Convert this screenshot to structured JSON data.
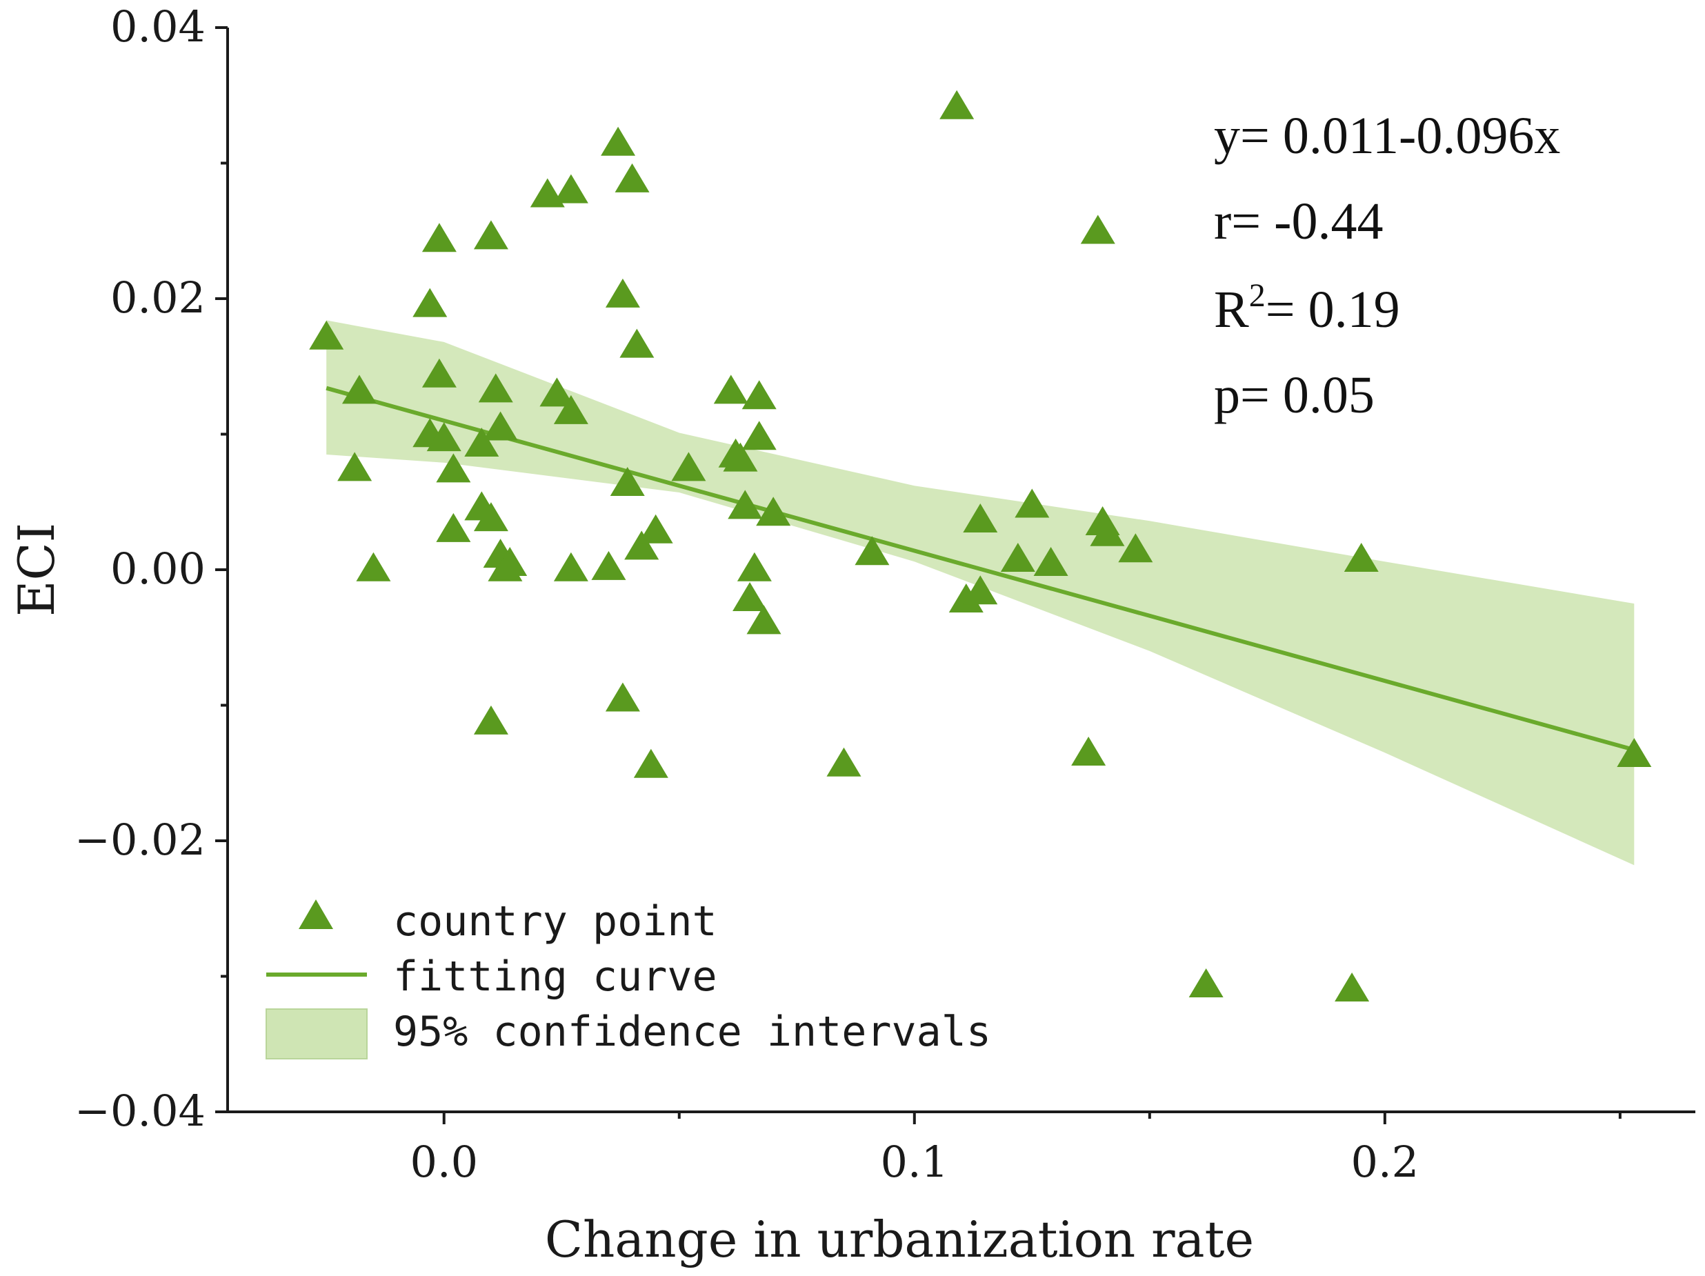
{
  "chart_data": {
    "type": "scatter",
    "xlabel": "Change in urbanization rate",
    "ylabel": "ECI",
    "xlim": [
      -0.046,
      0.266
    ],
    "ylim": [
      -0.04,
      0.04
    ],
    "x_ticks": [
      0.0,
      0.1,
      0.2
    ],
    "x_tick_labels": [
      "0.0",
      "0.1",
      "0.2"
    ],
    "y_ticks": [
      -0.04,
      -0.02,
      0.0,
      0.02,
      0.04
    ],
    "y_tick_labels": [
      "−0.04",
      "−0.02",
      "0.00",
      "0.02",
      "0.04"
    ],
    "grid": false,
    "legend_position": "bottom-left",
    "legend": [
      "country point",
      "fitting curve",
      "95% confidence intervals"
    ],
    "annotations": {
      "equation": "y= 0.011-0.096x",
      "r": "r= -0.44",
      "r2_prefix": "R",
      "r2_sup": "2",
      "r2_value": "= 0.19",
      "p": "p= 0.05"
    },
    "colors": {
      "points": "#5a9a1f",
      "line": "#6aaa2c",
      "band": "#cfe5b4",
      "axis": "#1a1a1a"
    },
    "series": [
      {
        "name": "country point",
        "points": [
          [
            -0.025,
            0.0171
          ],
          [
            -0.018,
            0.0131
          ],
          [
            -0.019,
            0.0074
          ],
          [
            -0.015,
            0.0
          ],
          [
            -0.003,
            0.0195
          ],
          [
            -0.001,
            0.0243
          ],
          [
            -0.001,
            0.0143
          ],
          [
            -0.003,
            0.0099
          ],
          [
            0.0,
            0.0096
          ],
          [
            0.002,
            0.0073
          ],
          [
            0.002,
            0.0029
          ],
          [
            0.008,
            0.0092
          ],
          [
            0.008,
            0.0045
          ],
          [
            0.01,
            0.0037
          ],
          [
            0.01,
            0.0245
          ],
          [
            0.011,
            0.0132
          ],
          [
            0.012,
            0.0104
          ],
          [
            0.012,
            0.001
          ],
          [
            0.013,
            0.0
          ],
          [
            0.014,
            0.0004
          ],
          [
            0.01,
            -0.0113
          ],
          [
            0.022,
            0.0276
          ],
          [
            0.024,
            0.0129
          ],
          [
            0.027,
            0.0279
          ],
          [
            0.027,
            0.0116
          ],
          [
            0.027,
            0.0
          ],
          [
            0.035,
            0.0001
          ],
          [
            0.037,
            0.0314
          ],
          [
            0.038,
            0.0202
          ],
          [
            0.039,
            0.0063
          ],
          [
            0.04,
            0.0287
          ],
          [
            0.041,
            0.0165
          ],
          [
            0.042,
            0.0016
          ],
          [
            0.045,
            0.0028
          ],
          [
            0.038,
            -0.0096
          ],
          [
            0.044,
            -0.0145
          ],
          [
            0.052,
            0.0074
          ],
          [
            0.061,
            0.0131
          ],
          [
            0.062,
            0.0084
          ],
          [
            0.063,
            0.0081
          ],
          [
            0.064,
            0.0046
          ],
          [
            0.065,
            -0.0022
          ],
          [
            0.066,
            0.0
          ],
          [
            0.067,
            0.0097
          ],
          [
            0.067,
            0.0127
          ],
          [
            0.068,
            -0.0039
          ],
          [
            0.07,
            0.0041
          ],
          [
            0.085,
            -0.0144
          ],
          [
            0.091,
            0.0012
          ],
          [
            0.109,
            0.0341
          ],
          [
            0.111,
            -0.0023
          ],
          [
            0.114,
            -0.0017
          ],
          [
            0.114,
            0.0036
          ],
          [
            0.122,
            0.0007
          ],
          [
            0.125,
            0.0047
          ],
          [
            0.129,
            0.0004
          ],
          [
            0.137,
            -0.0136
          ],
          [
            0.139,
            0.0249
          ],
          [
            0.14,
            0.0034
          ],
          [
            0.141,
            0.0026
          ],
          [
            0.147,
            0.0014
          ],
          [
            0.162,
            -0.0307
          ],
          [
            0.193,
            -0.031
          ],
          [
            0.195,
            0.0007
          ],
          [
            0.253,
            -0.0137
          ]
        ]
      }
    ],
    "fit": {
      "name": "fitting curve",
      "intercept": 0.011,
      "slope": -0.096,
      "x_range": [
        -0.025,
        0.253
      ]
    },
    "confidence_band": {
      "name": "95% confidence intervals",
      "x": [
        -0.025,
        0.0,
        0.05,
        0.1,
        0.15,
        0.2,
        0.253
      ],
      "lower": [
        0.0085,
        0.0079,
        0.0057,
        0.0006,
        -0.006,
        -0.0135,
        -0.0218
      ],
      "upper": [
        0.0184,
        0.0168,
        0.0101,
        0.0062,
        0.0036,
        0.0006,
        -0.0025
      ]
    }
  }
}
